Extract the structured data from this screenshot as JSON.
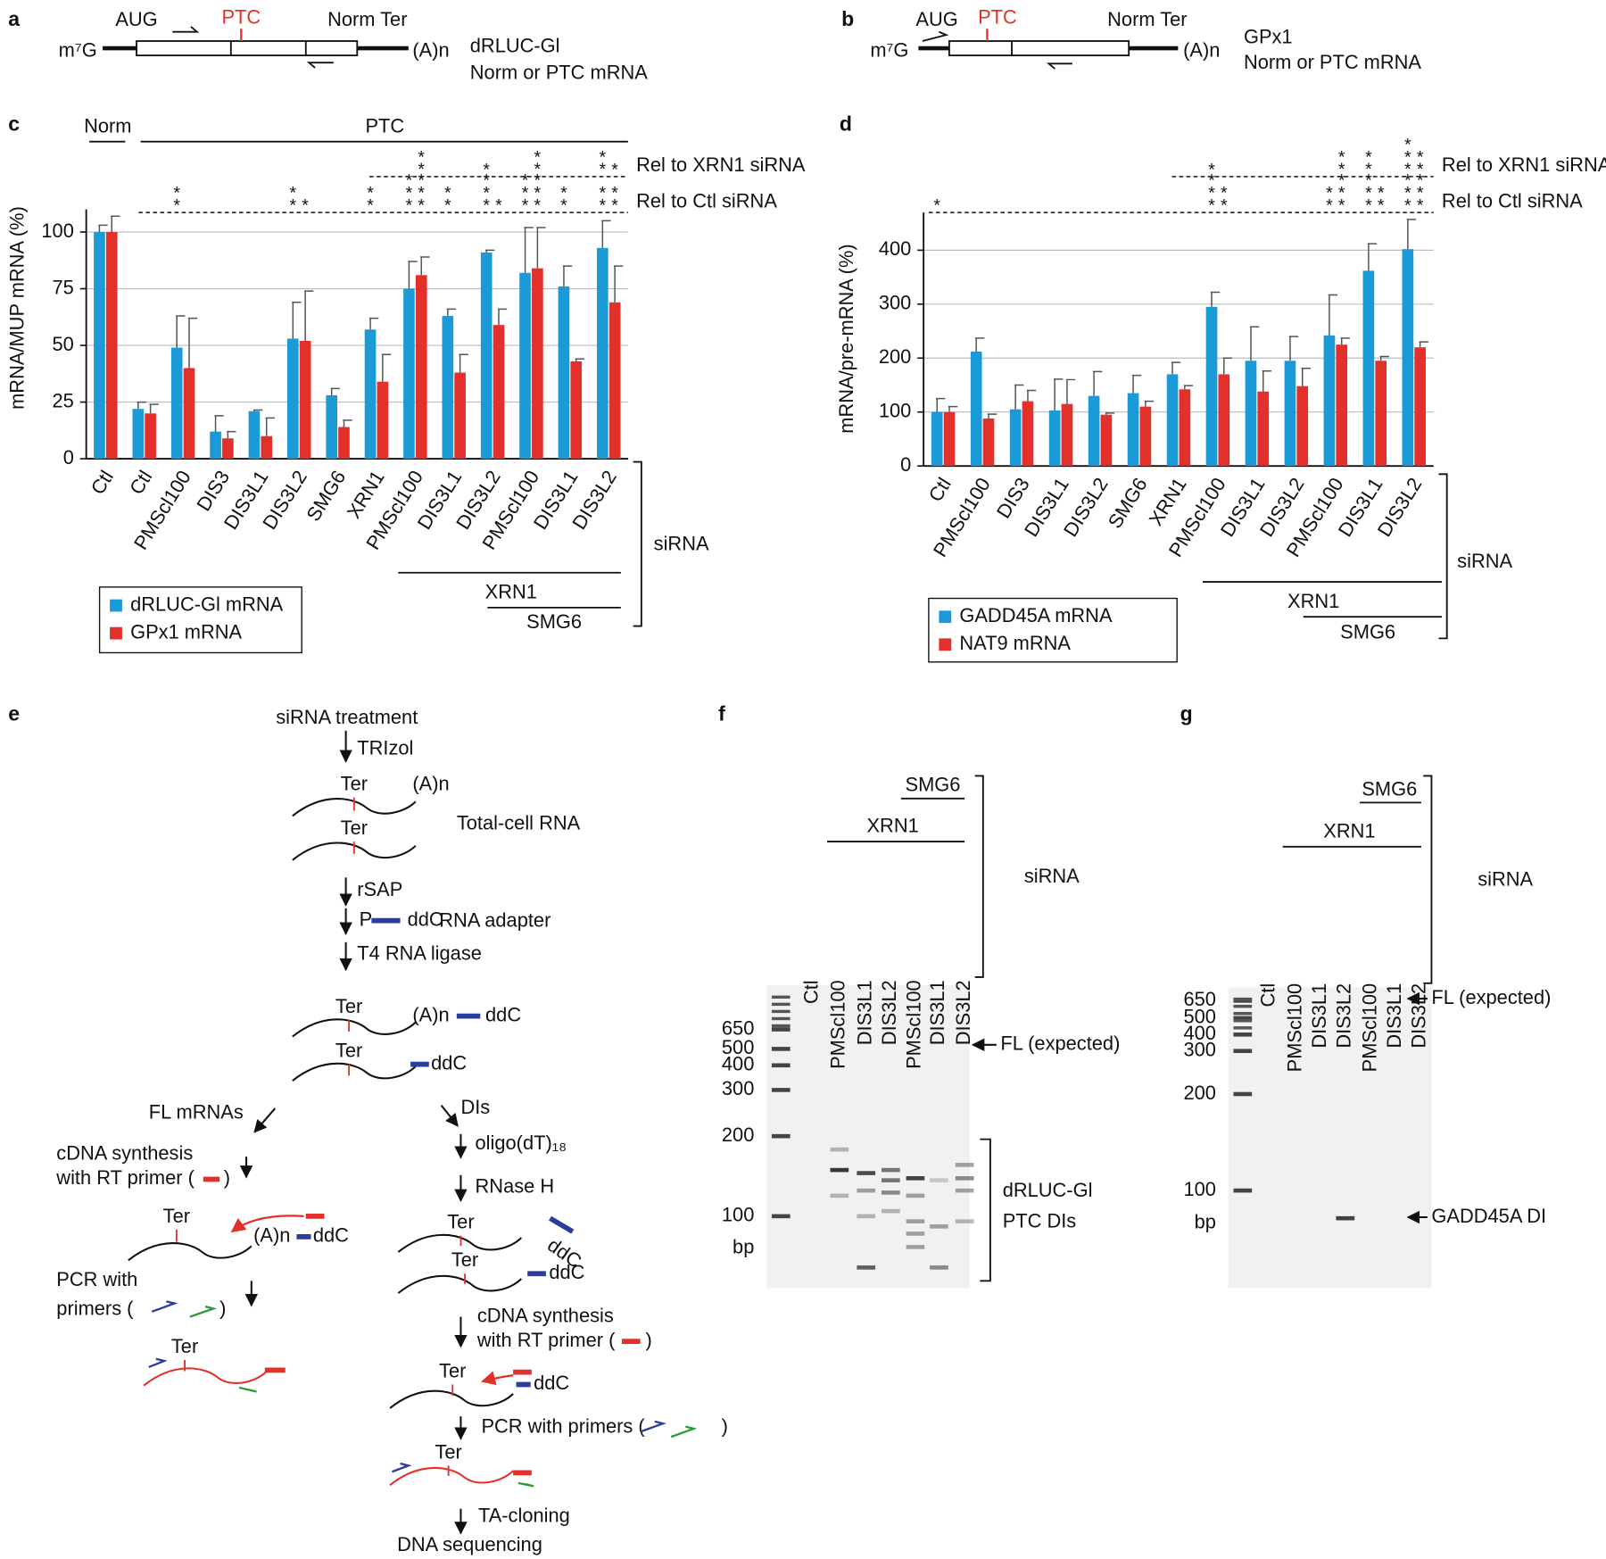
{
  "chart_data": [
    {
      "type": "bar",
      "panel_label": "c",
      "ylabel": "mRNA/MUP mRNA (%)",
      "categories": [
        "Ctl",
        "Ctl",
        "PMScl100",
        "DIS3",
        "DIS3L1",
        "DIS3L2",
        "SMG6",
        "XRN1",
        "PMScl100",
        "DIS3L1",
        "DIS3L2",
        "PMScl100",
        "DIS3L1",
        "DIS3L2"
      ],
      "series": [
        {
          "name": "dRLUC-Gl mRNA",
          "color": "#1a9ad6",
          "values": [
            100,
            22,
            49,
            12,
            21,
            53,
            28,
            57,
            75,
            63,
            91,
            82,
            76,
            93
          ],
          "errors": [
            3,
            3,
            14,
            7,
            0.5,
            16,
            3,
            5,
            12,
            3,
            1,
            20,
            9,
            12
          ]
        },
        {
          "name": "GPx1 mRNA",
          "color": "#e3302a",
          "values": [
            100,
            20,
            40,
            9,
            10,
            52,
            14,
            34,
            81,
            38,
            59,
            84,
            43,
            69
          ],
          "errors": [
            7,
            4,
            22,
            3,
            8,
            22,
            3,
            12,
            8,
            8,
            7,
            18,
            1,
            16
          ]
        }
      ],
      "ylim": [
        0,
        110
      ],
      "yticks": [
        0,
        25,
        50,
        75,
        100
      ],
      "grid": true,
      "header_labels": [
        "Norm",
        "PTC"
      ],
      "significance": [
        {
          "label": "Rel to XRN1 siRNA",
          "stars": [
            [
              null,
              null,
              null,
              null,
              null,
              null,
              null,
              null,
              null,
              null,
              "*",
              null,
              null,
              "**"
            ],
            [
              null,
              null,
              null,
              null,
              null,
              null,
              null,
              null,
              "**",
              null,
              null,
              "**",
              null,
              "*"
            ]
          ]
        },
        {
          "label": "Rel to Ctl siRNA",
          "stars": [
            [
              null,
              null,
              "**",
              null,
              null,
              "**",
              null,
              "**",
              "***",
              "**",
              "***",
              "***",
              "**",
              "**"
            ],
            [
              null,
              null,
              null,
              null,
              null,
              "*",
              null,
              null,
              "***",
              null,
              "*",
              "***",
              null,
              "**"
            ]
          ]
        }
      ],
      "group_labels": [
        "XRN1",
        "SMG6"
      ],
      "bracket_label": "siRNA"
    },
    {
      "type": "bar",
      "panel_label": "d",
      "ylabel": "mRNA/pre-mRNA (%)",
      "categories": [
        "Ctl",
        "PMScl100",
        "DIS3",
        "DIS3L1",
        "DIS3L2",
        "SMG6",
        "XRN1",
        "PMScl100",
        "DIS3L1",
        "DIS3L2",
        "PMScl100",
        "DIS3L1",
        "DIS3L2"
      ],
      "series": [
        {
          "name": "GADD45A mRNA",
          "color": "#1a9ad6",
          "values": [
            100,
            212,
            105,
            103,
            130,
            135,
            170,
            295,
            195,
            195,
            242,
            362,
            402
          ],
          "errors": [
            25,
            25,
            45,
            58,
            45,
            33,
            22,
            27,
            63,
            45,
            75,
            50,
            55
          ]
        },
        {
          "name": "NAT9 mRNA",
          "color": "#e3302a",
          "values": [
            100,
            88,
            120,
            115,
            95,
            110,
            142,
            170,
            138,
            148,
            225,
            195,
            220
          ],
          "errors": [
            10,
            8,
            20,
            45,
            3,
            10,
            7,
            30,
            38,
            33,
            12,
            8,
            10
          ]
        }
      ],
      "ylim": [
        0,
        470
      ],
      "yticks": [
        0,
        100,
        200,
        300,
        400
      ],
      "grid": true,
      "significance": [
        {
          "label": "Rel to XRN1 siRNA",
          "stars": [
            [
              null,
              null,
              null,
              null,
              null,
              null,
              null,
              "*",
              null,
              null,
              null,
              "**",
              "***"
            ],
            [
              null,
              null,
              null,
              null,
              null,
              null,
              null,
              null,
              null,
              null,
              "**",
              null,
              "**"
            ]
          ]
        },
        {
          "label": "Rel to Ctl siRNA",
          "stars": [
            [
              "*",
              null,
              null,
              null,
              null,
              null,
              null,
              "***",
              null,
              null,
              "**",
              "***",
              "***"
            ],
            [
              null,
              null,
              null,
              null,
              null,
              null,
              null,
              "**",
              null,
              null,
              "***",
              "**",
              "***"
            ]
          ]
        }
      ],
      "group_labels": [
        "XRN1",
        "SMG6"
      ],
      "bracket_label": "siRNA"
    }
  ],
  "panels": {
    "a": {
      "label": "a",
      "cap": "m⁷G",
      "start": "AUG",
      "ptc": "PTC",
      "stop": "Norm Ter",
      "tail": "(A)n",
      "name": "dRLUC-Gl",
      "desc": "Norm or PTC mRNA"
    },
    "b": {
      "label": "b",
      "cap": "m⁷G",
      "start": "AUG",
      "ptc": "PTC",
      "stop": "Norm Ter",
      "tail": "(A)n",
      "name": "GPx1",
      "desc": "Norm or PTC mRNA"
    },
    "e": {
      "label": "e",
      "texts": [
        "siRNA treatment",
        "TRIzol",
        "Ter",
        "(A)n",
        "Ter",
        "Total-cell RNA",
        "rSAP",
        "P",
        "ddC",
        "RNA adapter",
        "T4 RNA ligase",
        "Ter",
        "(A)n",
        "ddC",
        "Ter",
        "ddC",
        "FL mRNAs",
        "DIs",
        "cDNA synthesis",
        "with RT primer (",
        ")",
        "oligo(dT)₁₈",
        "RNase H",
        "Ter",
        "(A)n",
        "ddC",
        "Ter",
        "ddC",
        "Ter",
        "ddC",
        "PCR with",
        "primers (",
        ")",
        "Ter",
        "cDNA synthesis",
        "with RT primer (",
        ")",
        "Ter",
        "ddC",
        "PCR with primers (",
        ")",
        "Ter",
        "TA-cloning",
        "DNA sequencing"
      ]
    },
    "f": {
      "label": "f",
      "lanes": [
        "Ctl",
        "PMScl100",
        "DIS3L1",
        "DIS3L2",
        "PMScl100",
        "DIS3L1",
        "DIS3L2"
      ],
      "groups": [
        "SMG6",
        "XRN1"
      ],
      "bracket_label": "siRNA",
      "ladder": [
        650,
        500,
        400,
        300,
        200,
        100
      ],
      "unit": "bp",
      "annotations": [
        "FL (expected)",
        "dRLUC-Gl",
        "PTC DIs"
      ]
    },
    "g": {
      "label": "g",
      "lanes": [
        "Ctl",
        "PMScl100",
        "DIS3L1",
        "DIS3L2",
        "PMScl100",
        "DIS3L1",
        "DIS3L2"
      ],
      "groups": [
        "SMG6",
        "XRN1"
      ],
      "bracket_label": "siRNA",
      "ladder": [
        650,
        500,
        400,
        300,
        200,
        100
      ],
      "unit": "bp",
      "annotations": [
        "FL (expected)",
        "GADD45A DI"
      ]
    }
  }
}
